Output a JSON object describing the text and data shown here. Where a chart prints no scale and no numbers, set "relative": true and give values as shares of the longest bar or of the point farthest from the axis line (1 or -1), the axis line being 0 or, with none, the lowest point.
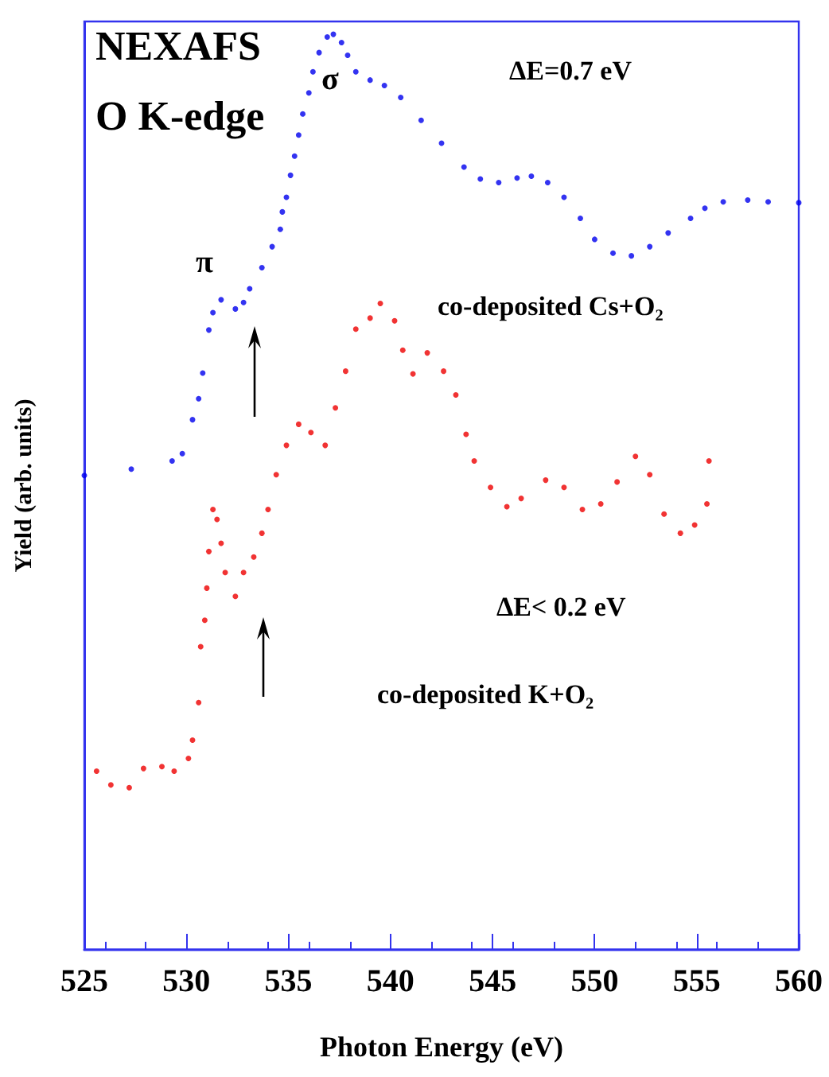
{
  "chart_data": {
    "type": "scatter",
    "xlabel": "Photon Energy (eV)",
    "ylabel": "Yield (arb. units)",
    "relative": true,
    "xlim": [
      525,
      560
    ],
    "xticks": [
      525,
      530,
      535,
      540,
      545,
      550,
      555,
      560
    ],
    "tick_labels": "x",
    "grid": false,
    "marker": "circle",
    "annotations": [
      "NEXAFS",
      "O K-edge",
      "ΔE=0.7 eV",
      "ΔE< 0.2 eV",
      "σ",
      "π",
      "co-deposited Cs+O₂",
      "co-deposited K+O₂"
    ],
    "series": [
      {
        "color": "#0000ee",
        "x": [
          525.0,
          527.3,
          529.3,
          529.8,
          530.3,
          530.6,
          530.8,
          531.1,
          531.3,
          531.7,
          532.4,
          532.8,
          533.1,
          533.7,
          534.2,
          534.6,
          534.7,
          534.9,
          535.1,
          535.3,
          535.5,
          535.7,
          536.0,
          536.2,
          536.5,
          536.9,
          537.2,
          537.6,
          537.9,
          538.3,
          539.0,
          539.7,
          540.5,
          541.5,
          542.5,
          543.6,
          544.4,
          545.3,
          546.2,
          546.9,
          547.7,
          548.5,
          549.3,
          550.0,
          550.9,
          551.8,
          552.7,
          553.6,
          554.7,
          555.4,
          556.3,
          557.5,
          558.5,
          560.0
        ],
        "values": [
          0.518,
          0.525,
          0.534,
          0.542,
          0.579,
          0.602,
          0.63,
          0.677,
          0.696,
          0.71,
          0.7,
          0.707,
          0.722,
          0.745,
          0.768,
          0.787,
          0.806,
          0.822,
          0.846,
          0.867,
          0.89,
          0.913,
          0.936,
          0.959,
          0.98,
          0.997,
          1.0,
          0.991,
          0.977,
          0.959,
          0.95,
          0.944,
          0.931,
          0.906,
          0.881,
          0.855,
          0.842,
          0.838,
          0.843,
          0.845,
          0.838,
          0.822,
          0.799,
          0.776,
          0.761,
          0.758,
          0.768,
          0.783,
          0.799,
          0.81,
          0.817,
          0.819,
          0.817,
          0.816
        ]
      },
      {
        "color": "#ee0000",
        "x": [
          525.6,
          526.3,
          527.2,
          527.9,
          528.8,
          529.4,
          530.1,
          530.3,
          530.6,
          530.7,
          530.9,
          531.0,
          531.1,
          531.3,
          531.5,
          531.7,
          531.9,
          532.4,
          532.8,
          533.3,
          533.7,
          534.0,
          534.4,
          534.9,
          535.5,
          536.1,
          536.8,
          537.3,
          537.8,
          538.3,
          539.0,
          539.5,
          540.2,
          540.6,
          541.1,
          541.8,
          542.6,
          543.2,
          543.7,
          544.1,
          544.9,
          545.7,
          546.4,
          547.6,
          548.5,
          549.4,
          550.3,
          551.1,
          552.0,
          552.7,
          553.4,
          554.2,
          554.9,
          555.5,
          555.6
        ],
        "values": [
          0.195,
          0.18,
          0.177,
          0.198,
          0.2,
          0.195,
          0.209,
          0.229,
          0.27,
          0.331,
          0.36,
          0.395,
          0.435,
          0.481,
          0.47,
          0.444,
          0.412,
          0.386,
          0.412,
          0.429,
          0.455,
          0.481,
          0.519,
          0.551,
          0.574,
          0.565,
          0.551,
          0.592,
          0.632,
          0.678,
          0.69,
          0.706,
          0.687,
          0.655,
          0.629,
          0.652,
          0.632,
          0.606,
          0.563,
          0.534,
          0.505,
          0.484,
          0.493,
          0.513,
          0.505,
          0.481,
          0.487,
          0.511,
          0.539,
          0.519,
          0.476,
          0.455,
          0.464,
          0.487,
          0.534
        ]
      }
    ]
  }
}
